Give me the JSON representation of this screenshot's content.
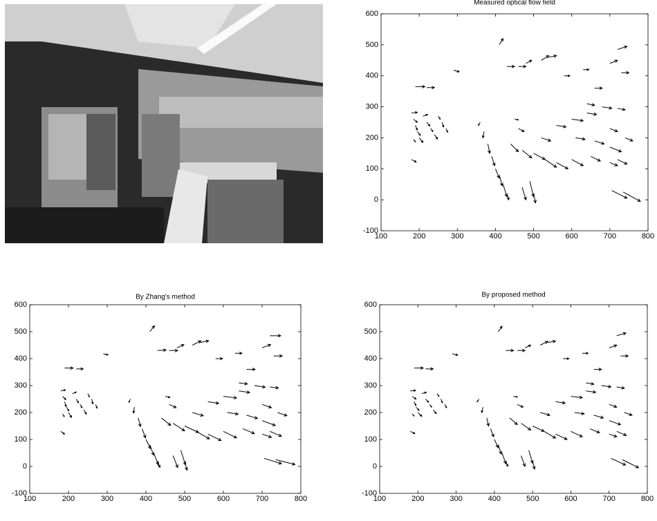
{
  "chart_data": [
    {
      "type": "quiver",
      "title": "Measured optical flow field",
      "color": "#000000",
      "xlim": [
        100,
        800
      ],
      "ylim": [
        -100,
        600
      ],
      "xticks": [
        100,
        200,
        300,
        400,
        500,
        600,
        700,
        800
      ],
      "yticks": [
        -100,
        0,
        100,
        200,
        300,
        400,
        500,
        600
      ],
      "x": [
        180,
        185,
        190,
        195,
        200,
        185,
        210,
        220,
        230,
        240,
        250,
        260,
        270,
        180,
        190,
        220,
        290,
        360,
        370,
        380,
        390,
        400,
        410,
        420,
        430,
        470,
        490,
        500,
        450,
        460,
        440,
        470,
        500,
        530,
        560,
        520,
        560,
        600,
        640,
        680,
        610,
        660,
        700,
        720,
        700,
        740,
        600,
        650,
        700,
        410,
        430,
        460,
        480,
        520,
        540,
        580,
        630,
        660,
        700,
        720,
        730,
        640,
        720,
        705,
        735
      ],
      "y": [
        280,
        260,
        240,
        220,
        200,
        195,
        270,
        250,
        230,
        210,
        270,
        250,
        230,
        130,
        365,
        362,
        418,
        250,
        220,
        180,
        140,
        100,
        80,
        50,
        20,
        40,
        60,
        20,
        260,
        230,
        180,
        160,
        150,
        130,
        120,
        200,
        240,
        260,
        280,
        300,
        200,
        190,
        170,
        130,
        230,
        200,
        130,
        140,
        120,
        500,
        430,
        430,
        440,
        450,
        460,
        400,
        420,
        360,
        440,
        485,
        410,
        310,
        295,
        30,
        25
      ],
      "u": [
        15,
        10,
        5,
        8,
        10,
        5,
        12,
        8,
        6,
        8,
        5,
        4,
        5,
        12,
        25,
        20,
        15,
        -5,
        -3,
        5,
        8,
        10,
        8,
        10,
        5,
        10,
        10,
        5,
        10,
        15,
        20,
        25,
        30,
        30,
        30,
        25,
        25,
        30,
        25,
        25,
        25,
        25,
        30,
        25,
        20,
        20,
        30,
        25,
        20,
        10,
        20,
        20,
        15,
        20,
        20,
        15,
        15,
        20,
        20,
        25,
        20,
        20,
        20,
        40,
        45
      ],
      "v": [
        2,
        -10,
        -15,
        -12,
        -15,
        -8,
        5,
        -12,
        -10,
        -14,
        -10,
        -15,
        -12,
        -8,
        0,
        0,
        -5,
        -10,
        -20,
        -30,
        -30,
        -30,
        -35,
        -40,
        -20,
        -40,
        -50,
        -30,
        -2,
        -10,
        -25,
        -25,
        -20,
        -25,
        -20,
        -10,
        -5,
        -5,
        -5,
        -5,
        -5,
        -10,
        -15,
        -15,
        -10,
        -10,
        -20,
        -15,
        -10,
        20,
        0,
        0,
        10,
        15,
        5,
        0,
        0,
        0,
        10,
        10,
        0,
        -5,
        -5,
        -25,
        -30
      ]
    },
    {
      "type": "quiver",
      "title": "By Zhang's method",
      "color": "#000000",
      "xlim": [
        100,
        800
      ],
      "ylim": [
        -100,
        600
      ],
      "xticks": [
        100,
        200,
        300,
        400,
        500,
        600,
        700,
        800
      ],
      "yticks": [
        -100,
        0,
        100,
        200,
        300,
        400,
        500,
        600
      ],
      "x": [
        180,
        185,
        190,
        195,
        200,
        185,
        210,
        220,
        230,
        240,
        250,
        260,
        270,
        180,
        190,
        220,
        290,
        360,
        370,
        380,
        390,
        400,
        410,
        420,
        430,
        470,
        490,
        500,
        450,
        460,
        440,
        470,
        500,
        530,
        560,
        520,
        560,
        600,
        640,
        680,
        610,
        660,
        700,
        720,
        700,
        740,
        600,
        650,
        700,
        410,
        430,
        460,
        480,
        520,
        540,
        580,
        630,
        660,
        700,
        720,
        730,
        640,
        720,
        705,
        735
      ],
      "y": [
        280,
        260,
        240,
        220,
        200,
        195,
        270,
        250,
        230,
        210,
        270,
        250,
        230,
        130,
        365,
        362,
        418,
        250,
        220,
        180,
        140,
        100,
        80,
        50,
        20,
        40,
        60,
        20,
        260,
        230,
        180,
        160,
        150,
        130,
        120,
        200,
        240,
        260,
        280,
        300,
        200,
        190,
        170,
        130,
        230,
        200,
        130,
        140,
        120,
        500,
        430,
        430,
        440,
        450,
        460,
        400,
        420,
        360,
        440,
        485,
        410,
        310,
        295,
        30,
        25
      ],
      "u": [
        12,
        8,
        4,
        6,
        8,
        4,
        10,
        6,
        5,
        6,
        4,
        3,
        4,
        10,
        22,
        18,
        12,
        -4,
        -2,
        6,
        9,
        12,
        10,
        12,
        6,
        12,
        12,
        6,
        12,
        18,
        24,
        30,
        36,
        34,
        34,
        28,
        28,
        34,
        28,
        28,
        28,
        28,
        34,
        30,
        24,
        24,
        34,
        30,
        24,
        12,
        22,
        22,
        18,
        22,
        22,
        18,
        18,
        22,
        22,
        28,
        22,
        22,
        22,
        45,
        50
      ],
      "v": [
        4,
        -12,
        -18,
        -14,
        -18,
        -10,
        6,
        -14,
        -12,
        -16,
        -12,
        -18,
        -14,
        -10,
        0,
        0,
        -4,
        -12,
        -22,
        -32,
        -34,
        -34,
        -38,
        -44,
        -24,
        -44,
        -54,
        -34,
        -4,
        -12,
        -28,
        -28,
        -24,
        -28,
        -24,
        -12,
        -6,
        -6,
        -6,
        -6,
        -6,
        -12,
        -18,
        -18,
        -12,
        -12,
        -24,
        -18,
        -12,
        22,
        2,
        0,
        12,
        16,
        6,
        0,
        0,
        0,
        12,
        0,
        0,
        -4,
        -4,
        -20,
        -18
      ]
    },
    {
      "type": "quiver",
      "title": "By proposed method",
      "color": "#000000",
      "xlim": [
        100,
        800
      ],
      "ylim": [
        -100,
        600
      ],
      "xticks": [
        100,
        200,
        300,
        400,
        500,
        600,
        700,
        800
      ],
      "yticks": [
        -100,
        0,
        100,
        200,
        300,
        400,
        500,
        600
      ],
      "x": [
        180,
        185,
        190,
        195,
        200,
        185,
        210,
        220,
        230,
        240,
        250,
        260,
        270,
        180,
        190,
        220,
        290,
        360,
        370,
        380,
        390,
        400,
        410,
        420,
        430,
        470,
        490,
        500,
        450,
        460,
        440,
        470,
        500,
        530,
        560,
        520,
        560,
        600,
        640,
        680,
        610,
        660,
        700,
        720,
        700,
        740,
        600,
        650,
        700,
        410,
        430,
        460,
        480,
        520,
        540,
        580,
        630,
        660,
        700,
        720,
        730,
        640,
        720,
        705,
        735
      ],
      "y": [
        280,
        260,
        240,
        220,
        200,
        195,
        270,
        250,
        230,
        210,
        270,
        250,
        230,
        130,
        365,
        362,
        418,
        250,
        220,
        180,
        140,
        100,
        80,
        50,
        20,
        40,
        60,
        20,
        260,
        230,
        180,
        160,
        150,
        130,
        120,
        200,
        240,
        260,
        280,
        300,
        200,
        190,
        170,
        130,
        230,
        200,
        130,
        140,
        120,
        500,
        430,
        430,
        440,
        450,
        460,
        400,
        420,
        360,
        440,
        485,
        410,
        310,
        295,
        30,
        25
      ],
      "u": [
        14,
        10,
        5,
        8,
        10,
        5,
        12,
        8,
        6,
        8,
        5,
        4,
        5,
        12,
        24,
        20,
        14,
        -5,
        -3,
        5,
        8,
        10,
        8,
        10,
        5,
        10,
        10,
        5,
        10,
        15,
        20,
        25,
        30,
        30,
        30,
        25,
        25,
        30,
        25,
        25,
        25,
        25,
        30,
        25,
        20,
        20,
        30,
        25,
        20,
        10,
        20,
        20,
        15,
        20,
        20,
        15,
        15,
        20,
        20,
        24,
        20,
        20,
        20,
        38,
        42
      ],
      "v": [
        2,
        -10,
        -14,
        -12,
        -14,
        -8,
        5,
        -12,
        -10,
        -14,
        -10,
        -14,
        -12,
        -8,
        0,
        0,
        -5,
        -10,
        -20,
        -30,
        -30,
        -30,
        -34,
        -40,
        -20,
        -40,
        -48,
        -30,
        -2,
        -10,
        -25,
        -25,
        -20,
        -25,
        -20,
        -10,
        -5,
        -5,
        -5,
        -5,
        -5,
        -10,
        -15,
        -15,
        -10,
        -10,
        -20,
        -15,
        -10,
        20,
        0,
        0,
        10,
        14,
        5,
        0,
        0,
        0,
        10,
        10,
        0,
        -5,
        -5,
        -25,
        -30
      ]
    }
  ]
}
